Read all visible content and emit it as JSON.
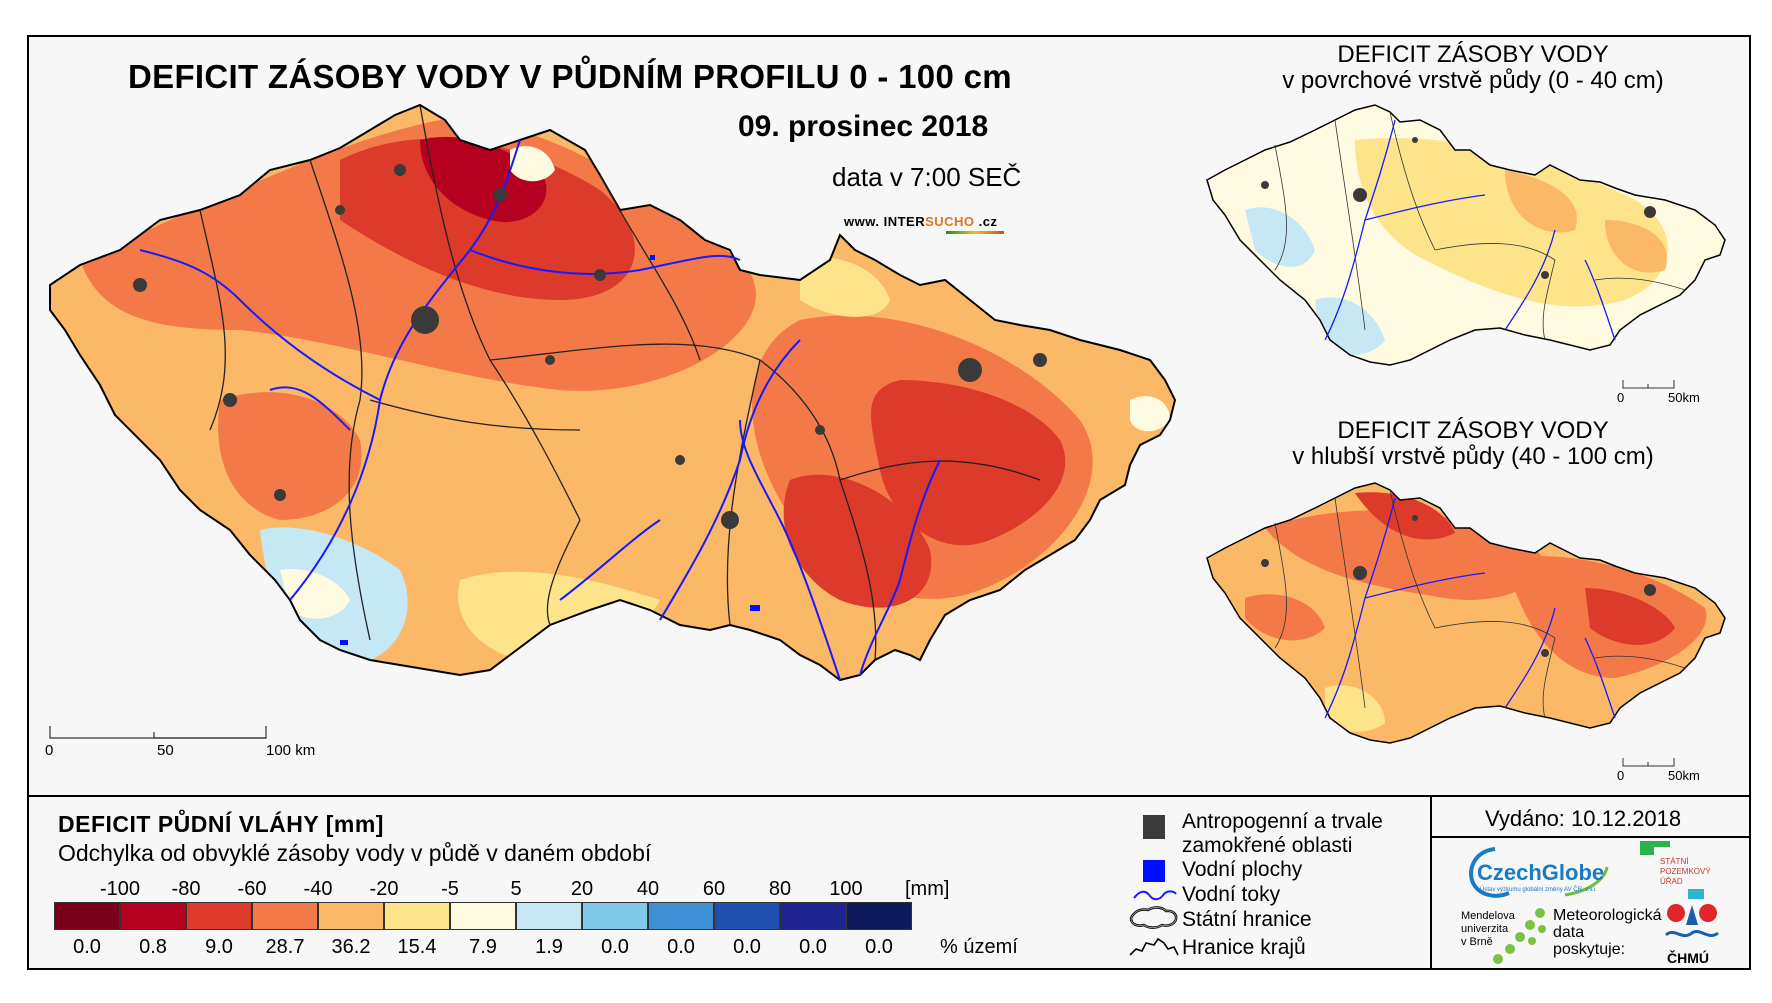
{
  "main_map": {
    "title": "DEFICIT ZÁSOBY VODY V PŮDNÍM PROFILU 0 - 100 cm",
    "date": "09. prosinec 2018",
    "time": "data v 7:00 SEČ",
    "site_prefix": "www. INTER",
    "site_highlight": "SUCHO",
    "site_suffix": " .cz",
    "scale_labels": [
      "0",
      "50",
      "100 km"
    ]
  },
  "top_inset": {
    "title": "DEFICIT ZÁSOBY VODY",
    "subtitle": "v povrchové vrstvě půdy (0 - 40 cm)",
    "scale_labels": [
      "0",
      "50km"
    ]
  },
  "bottom_inset": {
    "title": "DEFICIT ZÁSOBY VODY",
    "subtitle": "v hlubší vrstvě půdy (40 - 100 cm)",
    "scale_labels": [
      "0",
      "50km"
    ]
  },
  "legend": {
    "title": "DEFICIT PŮDNÍ VLÁHY [mm]",
    "subtitle": "Odchylka od obvyklé zásoby vody v půdě v daném období",
    "unit": "[mm]",
    "pct_unit": "% území",
    "class_labels": [
      "-100",
      "-80",
      "-60",
      "-40",
      "-20",
      "-5",
      "5",
      "20",
      "40",
      "60",
      "80",
      "100"
    ],
    "classes": [
      {
        "color": "#7a0019",
        "pct": "0.0"
      },
      {
        "color": "#b5001f",
        "pct": "0.8"
      },
      {
        "color": "#dc3a2a",
        "pct": "9.0"
      },
      {
        "color": "#f37a48",
        "pct": "28.7"
      },
      {
        "color": "#fbb968",
        "pct": "36.2"
      },
      {
        "color": "#fde48a",
        "pct": "15.4"
      },
      {
        "color": "#fffbe0",
        "pct": "7.9"
      },
      {
        "color": "#c6e8f5",
        "pct": "1.9"
      },
      {
        "color": "#7fc8ea",
        "pct": "0.0"
      },
      {
        "color": "#3f90d4",
        "pct": "0.0"
      },
      {
        "color": "#1f4fb0",
        "pct": "0.0"
      },
      {
        "color": "#1d2390",
        "pct": "0.0"
      },
      {
        "color": "#0c1a5c",
        "pct": "0.0"
      }
    ]
  },
  "key": {
    "anthropogenic_line1": "Antropogenní a trvale",
    "anthropogenic_line2": "zamokřené oblasti",
    "water_bodies": "Vodní plochy",
    "rivers": "Vodní toky",
    "state_border": "Státní hranice",
    "region_border": "Hranice krajů"
  },
  "issued": "Vydáno: 10.12.2018",
  "logos": {
    "czechglobe": "CzechGlobe",
    "czechglobe_sub": "Ústav výzkumu globální změny AV ČR, v.v.i.",
    "spu_line1": "STÁTNÍ",
    "spu_line2": "POZEMKOVÝ",
    "spu_line3": "ÚŘAD",
    "mendel_line1": "Mendelova",
    "mendel_line2": "univerzita",
    "mendel_line3": "v Brně",
    "met_line1": "Meteorologická",
    "met_line2": "data",
    "met_line3": "poskytuje:",
    "chmu": "ČHMÚ"
  },
  "colors": {
    "anthropogenic": "#3a3a3a",
    "water": "#0010ff",
    "river": "#1a1aff",
    "border": "#000000"
  }
}
